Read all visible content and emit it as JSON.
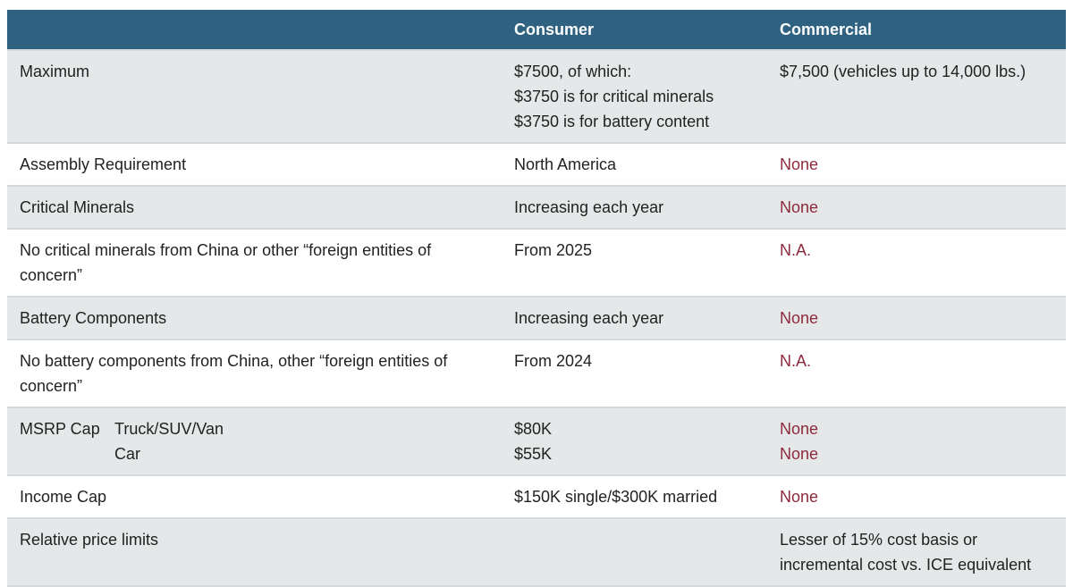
{
  "table": {
    "header": {
      "consumer": "Consumer",
      "commercial": "Commercial"
    },
    "rows": [
      {
        "label": "Maximum",
        "consumer": [
          "$7500, of which:",
          "$3750 is for critical minerals",
          "$3750 is for battery content"
        ],
        "commercial": [
          "$7,500 (vehicles up to 14,000 lbs.)"
        ]
      },
      {
        "label": "Assembly Requirement",
        "consumer": [
          "North America"
        ],
        "commercial": [
          "None"
        ]
      },
      {
        "label": "Critical Minerals",
        "consumer": [
          "Increasing each year"
        ],
        "commercial": [
          "None"
        ]
      },
      {
        "label": "No critical minerals from China or other “foreign entities of concern”",
        "consumer": [
          "From 2025"
        ],
        "commercial": [
          "N.A."
        ]
      },
      {
        "label": "Battery Components",
        "consumer": [
          "Increasing each year"
        ],
        "commercial": [
          "None"
        ]
      },
      {
        "label": "No battery components from China, other “foreign entities of concern”",
        "consumer": [
          "From 2024"
        ],
        "commercial": [
          "N.A."
        ]
      },
      {
        "label": "MSRP Cap",
        "sublabels": [
          "Truck/SUV/Van",
          "Car"
        ],
        "consumer": [
          "$80K",
          "$55K"
        ],
        "commercial": [
          "None",
          "None"
        ]
      },
      {
        "label": "Income Cap",
        "consumer": [
          "$150K single/$300K married"
        ],
        "commercial": [
          "None"
        ]
      },
      {
        "label": "Relative price limits",
        "consumer": [],
        "commercial": [
          "Lesser of 15% cost basis or",
          "incremental cost vs. ICE equivalent"
        ]
      }
    ]
  },
  "colors": {
    "header_bg": "#2F6180",
    "header_text": "#FFFFFF",
    "row_alt_bg": "#E5E7E9",
    "row_bg": "#FFFFFF",
    "body_text": "#212322",
    "accent_red": "#8D2A3C",
    "divider": "#D6D9DC"
  }
}
